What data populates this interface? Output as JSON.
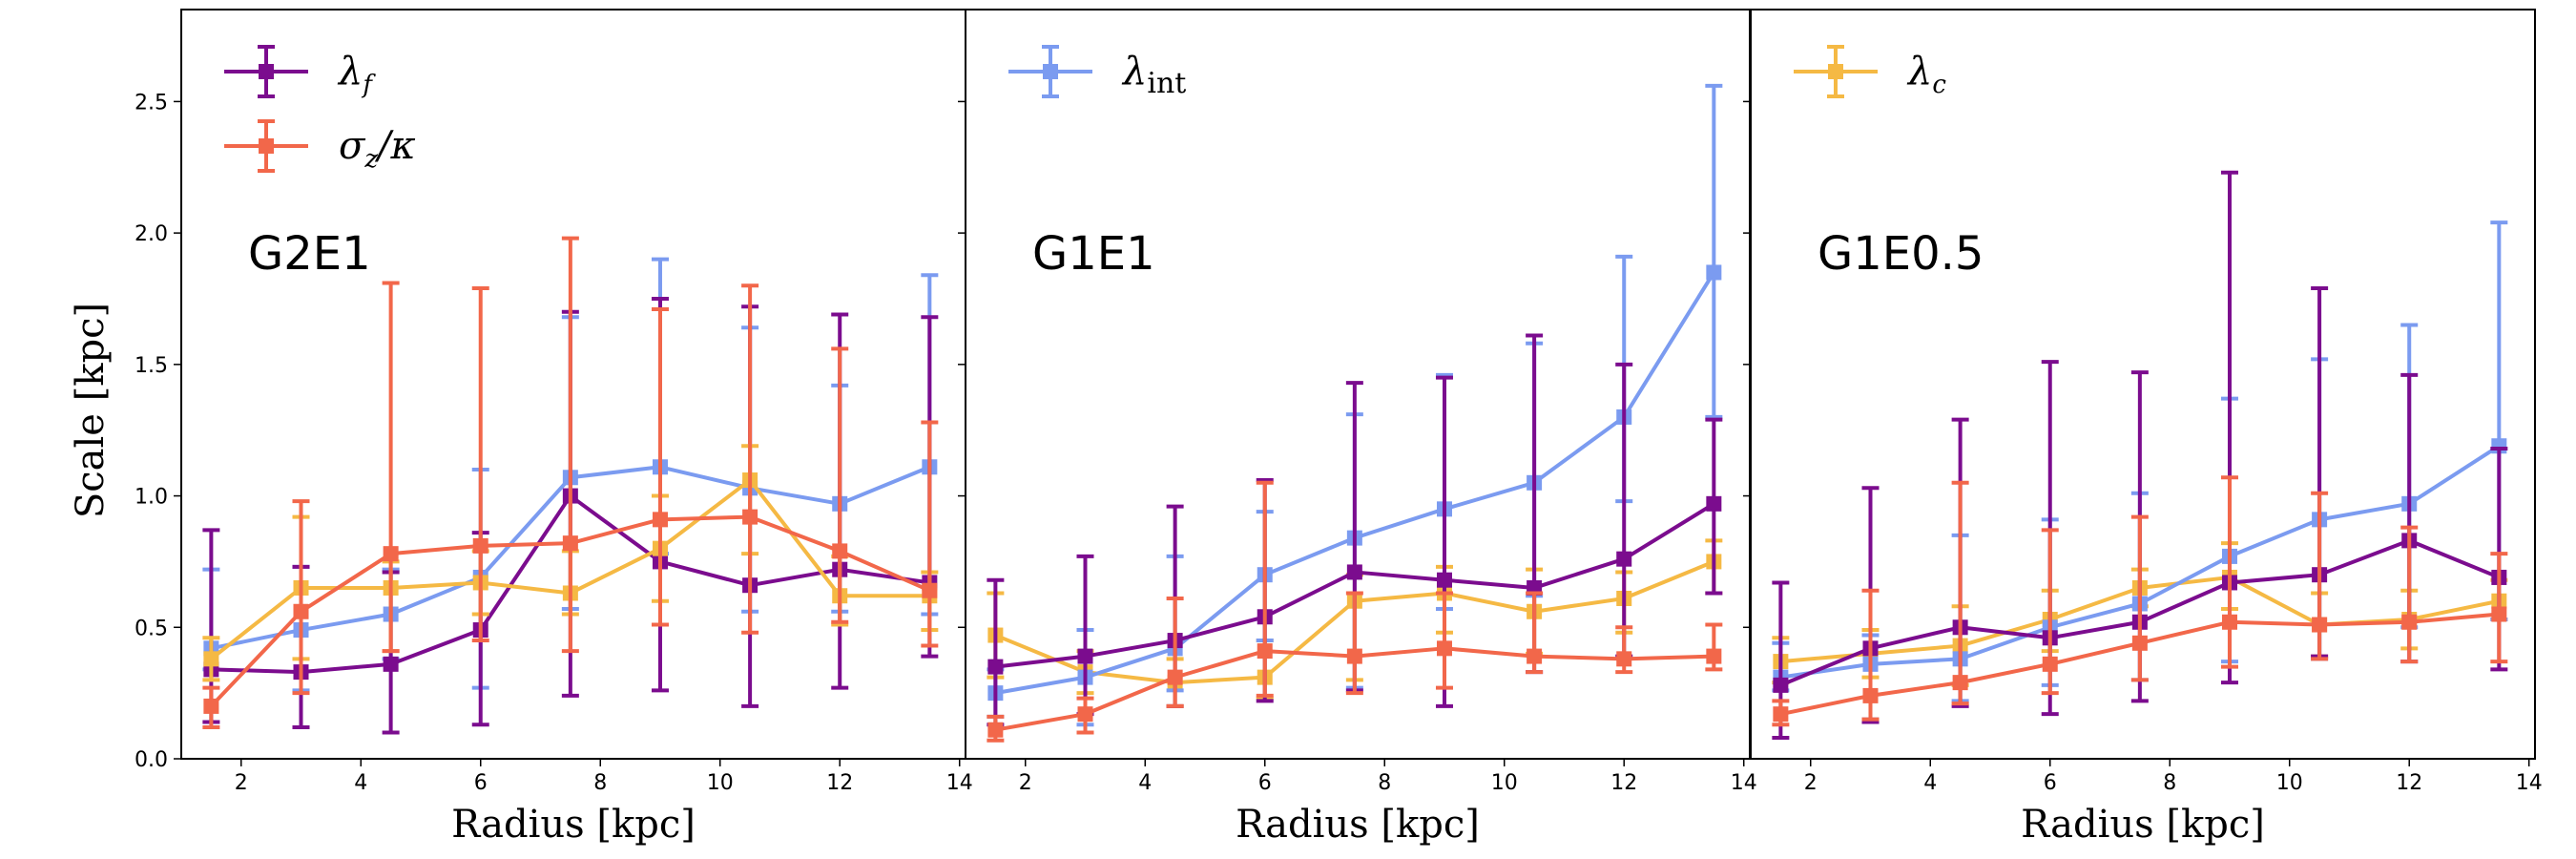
{
  "colors": {
    "lambda_f": "#7b0c8e",
    "lambda_int": "#7b9bf0",
    "lambda_c": "#f5b944",
    "sigma_kappa": "#f2674a",
    "frame": "#000000"
  },
  "chart_data": {
    "type": "line",
    "ylabel": "Scale [kpc]",
    "xlabel": "Radius [kpc]",
    "xlim": [
      1,
      14.1
    ],
    "ylim": [
      0,
      2.85
    ],
    "x_ticks": [
      2,
      4,
      6,
      8,
      10,
      12,
      14
    ],
    "y_ticks": [
      0.0,
      0.5,
      1.0,
      1.5,
      2.0,
      2.5
    ],
    "x_tick_labels": [
      "2",
      "4",
      "6",
      "8",
      "10",
      "12",
      "14"
    ],
    "y_tick_labels": [
      "0.0",
      "0.5",
      "1.0",
      "1.5",
      "2.0",
      "2.5"
    ],
    "x": [
      1.5,
      3.0,
      4.5,
      6.0,
      7.5,
      9.0,
      10.5,
      12.0,
      13.5
    ],
    "legend_labels": {
      "lambda_f": {
        "symbol": "λ",
        "subscript": "f"
      },
      "sigma_kappa": {
        "symbol": "σ",
        "subscript": "z",
        "suffix": "/κ"
      },
      "lambda_int": {
        "symbol": "λ",
        "subscript": "int"
      },
      "lambda_c": {
        "symbol": "λ",
        "subscript": "c"
      }
    },
    "panels": [
      {
        "title": "G2E1",
        "legend": [
          "lambda_f",
          "sigma_kappa"
        ],
        "series": [
          {
            "key": "lambda_int",
            "values": [
              0.42,
              0.49,
              0.55,
              0.69,
              1.07,
              1.11,
              1.03,
              0.97,
              1.11
            ],
            "upper": [
              0.72,
              0.73,
              0.72,
              1.1,
              1.68,
              1.9,
              1.64,
              1.42,
              1.84
            ],
            "lower": [
              0.34,
              0.26,
              0.38,
              0.27,
              0.57,
              0.78,
              0.56,
              0.56,
              0.55
            ]
          },
          {
            "key": "lambda_f",
            "values": [
              0.34,
              0.33,
              0.36,
              0.49,
              1.0,
              0.75,
              0.66,
              0.72,
              0.67
            ],
            "upper": [
              0.87,
              0.73,
              0.71,
              0.86,
              1.7,
              1.75,
              1.72,
              1.69,
              1.68
            ],
            "lower": [
              0.14,
              0.12,
              0.1,
              0.13,
              0.24,
              0.26,
              0.2,
              0.27,
              0.39
            ]
          },
          {
            "key": "lambda_c",
            "values": [
              0.38,
              0.65,
              0.65,
              0.67,
              0.63,
              0.8,
              1.06,
              0.62,
              0.62
            ],
            "upper": [
              0.46,
              0.92,
              0.75,
              0.79,
              0.79,
              1.0,
              1.19,
              0.77,
              0.71
            ],
            "lower": [
              0.3,
              0.38,
              0.41,
              0.55,
              0.55,
              0.6,
              0.78,
              0.51,
              0.49
            ]
          },
          {
            "key": "sigma_kappa",
            "values": [
              0.2,
              0.56,
              0.78,
              0.81,
              0.82,
              0.91,
              0.92,
              0.79,
              0.64
            ],
            "upper": [
              0.27,
              0.98,
              1.81,
              1.79,
              1.98,
              1.71,
              1.8,
              1.56,
              1.28
            ],
            "lower": [
              0.12,
              0.25,
              0.41,
              0.45,
              0.41,
              0.51,
              0.48,
              0.52,
              0.43
            ]
          }
        ]
      },
      {
        "title": "G1E1",
        "legend": [
          "lambda_int"
        ],
        "series": [
          {
            "key": "lambda_c",
            "values": [
              0.47,
              0.33,
              0.29,
              0.31,
              0.6,
              0.63,
              0.56,
              0.61,
              0.75
            ],
            "upper": [
              0.63,
              0.41,
              0.38,
              0.45,
              0.7,
              0.73,
              0.72,
              0.71,
              0.83
            ],
            "lower": [
              0.31,
              0.25,
              0.2,
              0.23,
              0.3,
              0.48,
              0.4,
              0.48,
              0.63
            ]
          },
          {
            "key": "lambda_int",
            "values": [
              0.25,
              0.31,
              0.42,
              0.7,
              0.84,
              0.95,
              1.05,
              1.3,
              1.85
            ],
            "upper": [
              0.34,
              0.49,
              0.77,
              0.94,
              1.31,
              1.46,
              1.58,
              1.91,
              2.56
            ],
            "lower": [
              0.16,
              0.13,
              0.26,
              0.45,
              0.27,
              0.57,
              0.62,
              0.98,
              1.3
            ]
          },
          {
            "key": "lambda_f",
            "values": [
              0.35,
              0.39,
              0.45,
              0.54,
              0.71,
              0.68,
              0.65,
              0.76,
              0.97
            ],
            "upper": [
              0.68,
              0.77,
              0.96,
              1.06,
              1.43,
              1.45,
              1.61,
              1.5,
              1.29
            ],
            "lower": [
              0.13,
              0.17,
              0.2,
              0.22,
              0.26,
              0.2,
              0.33,
              0.39,
              0.63
            ]
          },
          {
            "key": "sigma_kappa",
            "values": [
              0.11,
              0.17,
              0.31,
              0.41,
              0.39,
              0.42,
              0.39,
              0.38,
              0.39
            ],
            "upper": [
              0.16,
              0.23,
              0.61,
              1.05,
              0.63,
              0.63,
              0.63,
              0.5,
              0.51
            ],
            "lower": [
              0.07,
              0.1,
              0.2,
              0.24,
              0.25,
              0.27,
              0.33,
              0.33,
              0.34
            ]
          }
        ]
      },
      {
        "title": "G1E0.5",
        "legend": [
          "lambda_c"
        ],
        "series": [
          {
            "key": "lambda_c",
            "values": [
              0.37,
              0.4,
              0.43,
              0.53,
              0.65,
              0.69,
              0.51,
              0.53,
              0.6
            ],
            "upper": [
              0.46,
              0.49,
              0.58,
              0.64,
              0.72,
              0.82,
              0.63,
              0.64,
              0.68
            ],
            "lower": [
              0.29,
              0.31,
              0.28,
              0.41,
              0.58,
              0.57,
              0.39,
              0.42,
              0.53
            ]
          },
          {
            "key": "lambda_int",
            "values": [
              0.31,
              0.36,
              0.38,
              0.5,
              0.59,
              0.77,
              0.91,
              0.97,
              1.19
            ],
            "upper": [
              0.44,
              0.47,
              0.85,
              0.91,
              1.01,
              1.37,
              1.52,
              1.65,
              2.04
            ],
            "lower": [
              0.26,
              0.15,
              0.22,
              0.28,
              0.3,
              0.37,
              0.38,
              0.5,
              0.53
            ]
          },
          {
            "key": "lambda_f",
            "values": [
              0.28,
              0.42,
              0.5,
              0.46,
              0.52,
              0.67,
              0.7,
              0.83,
              0.69
            ],
            "upper": [
              0.67,
              1.03,
              1.29,
              1.51,
              1.47,
              2.23,
              1.79,
              1.46,
              1.18
            ],
            "lower": [
              0.08,
              0.14,
              0.2,
              0.17,
              0.22,
              0.29,
              0.39,
              0.37,
              0.34
            ]
          },
          {
            "key": "sigma_kappa",
            "values": [
              0.17,
              0.24,
              0.29,
              0.36,
              0.44,
              0.52,
              0.51,
              0.52,
              0.55
            ],
            "upper": [
              0.22,
              0.64,
              1.05,
              0.87,
              0.92,
              1.07,
              1.01,
              0.88,
              0.78
            ],
            "lower": [
              0.13,
              0.15,
              0.21,
              0.25,
              0.3,
              0.35,
              0.38,
              0.37,
              0.37
            ]
          }
        ]
      }
    ]
  }
}
